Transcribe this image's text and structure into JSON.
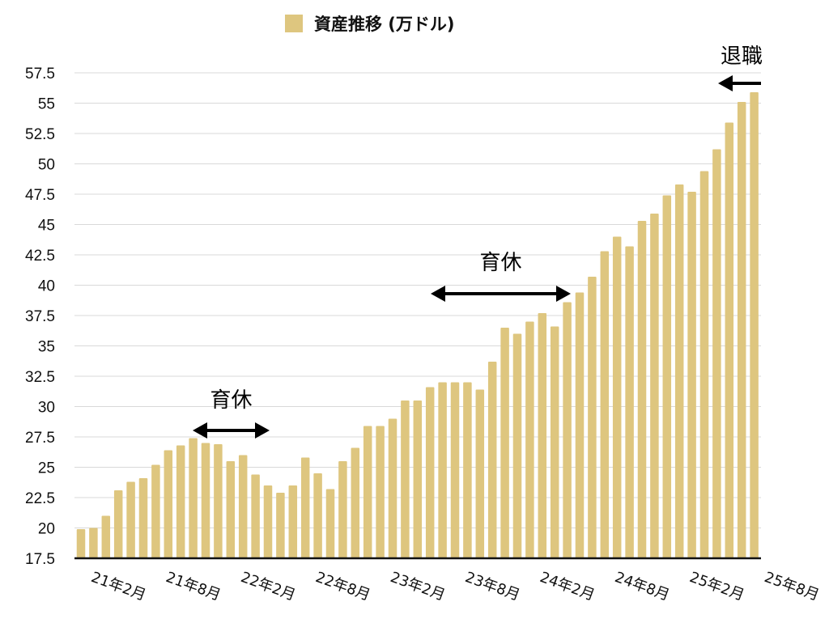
{
  "chart_data": {
    "type": "bar",
    "legend": {
      "label": "資産推移 (万ドル)",
      "placement": "top"
    },
    "series": [
      {
        "name": "資産推移 (万ドル)",
        "color": "#DEC67F",
        "values": [
          19.9,
          20.0,
          21.0,
          23.1,
          23.8,
          24.1,
          25.2,
          26.4,
          26.8,
          27.4,
          27.0,
          26.9,
          25.5,
          26.0,
          24.4,
          23.5,
          22.9,
          23.5,
          25.8,
          24.5,
          23.2,
          25.5,
          26.6,
          28.4,
          28.4,
          29.0,
          30.5,
          30.5,
          31.6,
          32.0,
          32.0,
          32.0,
          31.4,
          33.7,
          36.5,
          36.0,
          37.0,
          37.7,
          36.6,
          38.6,
          39.4,
          40.7,
          42.8,
          44.0,
          43.2,
          45.3,
          45.9,
          47.4,
          48.3,
          47.7,
          49.4,
          51.2,
          53.4,
          55.1,
          55.9
        ]
      }
    ],
    "x_tick_labels": [
      "21年2月",
      "21年8月",
      "22年2月",
      "22年8月",
      "23年2月",
      "23年8月",
      "24年2月",
      "24年8月",
      "25年2月",
      "25年8月"
    ],
    "y_ticks": [
      "17.5",
      "20",
      "22.5",
      "25",
      "27.5",
      "30",
      "32.5",
      "35",
      "37.5",
      "40",
      "42.5",
      "45",
      "47.5",
      "50",
      "52.5",
      "55",
      "57.5"
    ],
    "ylim": [
      17.5,
      57.5
    ],
    "grid": true,
    "annotations": [
      {
        "text": "育休",
        "arrow": "both",
        "from_index": 9,
        "to_index": 15
      },
      {
        "text": "育休",
        "arrow": "both",
        "from_index": 28,
        "to_index": 39
      },
      {
        "text": "退職",
        "arrow": "left",
        "from_index": 52,
        "to_index": 55
      }
    ]
  }
}
